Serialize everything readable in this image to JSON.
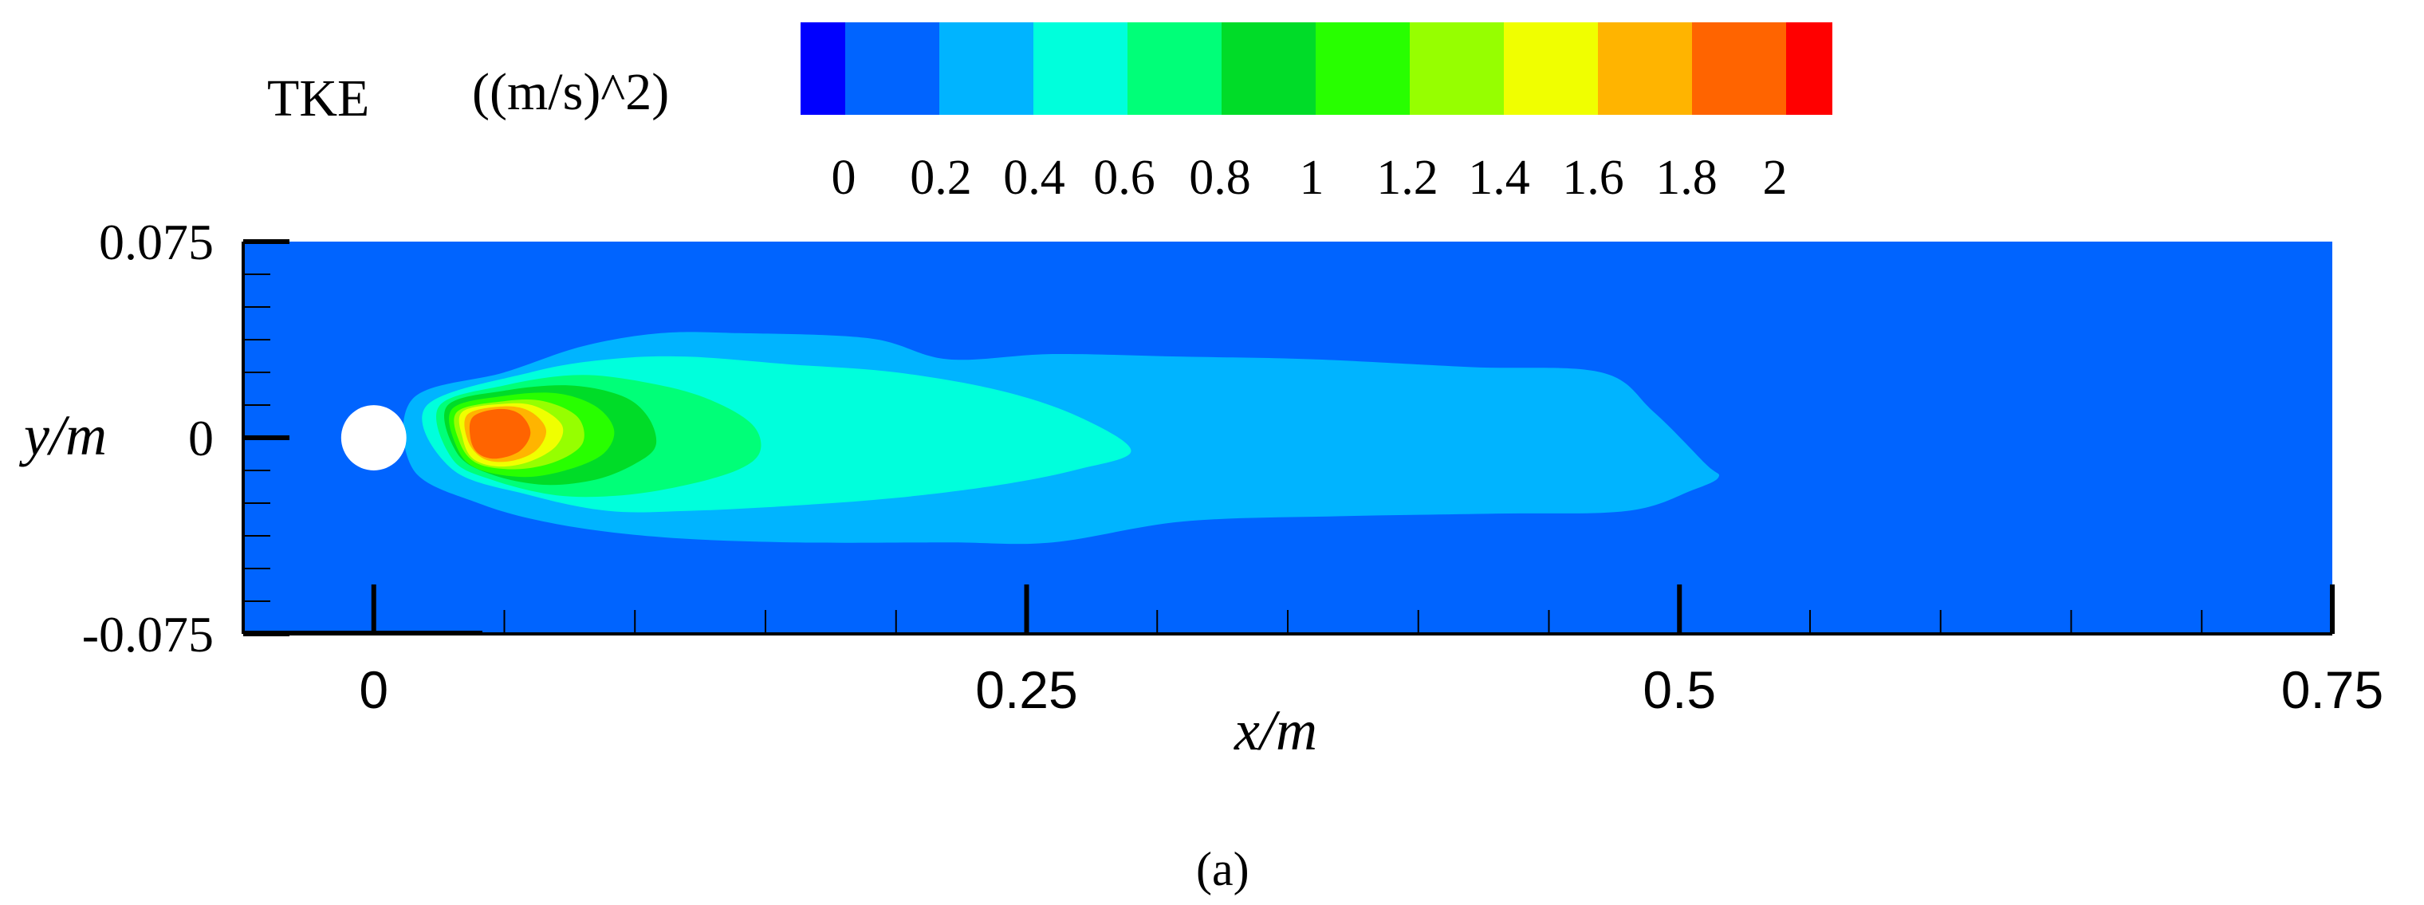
{
  "figure": {
    "panel_label": "(a)"
  },
  "legend": {
    "variable": "TKE",
    "unit": "((m/s)^2)",
    "levels": [
      {
        "value": "0",
        "color": "#0000ff"
      },
      {
        "value": "0.2",
        "color": "#0064ff"
      },
      {
        "value": "0.4",
        "color": "#00b4ff"
      },
      {
        "value": "0.6",
        "color": "#00ffdc"
      },
      {
        "value": "0.8",
        "color": "#00ff78"
      },
      {
        "value": "1",
        "color": "#00dc28"
      },
      {
        "value": "1.2",
        "color": "#28ff00"
      },
      {
        "value": "1.4",
        "color": "#96ff00"
      },
      {
        "value": "1.6",
        "color": "#f0ff00"
      },
      {
        "value": "1.8",
        "color": "#ffb400"
      },
      {
        "value": "2",
        "color": "#ff6400"
      }
    ],
    "top_color": "#ff0000",
    "ticks": [
      "0",
      "0.2",
      "0.4",
      "0.6",
      "0.8",
      "1",
      "1.2",
      "1.4",
      "1.6",
      "1.8",
      "2"
    ]
  },
  "chart_data": {
    "type": "heatmap",
    "title": "",
    "xlabel": "x/m",
    "ylabel": "y/m",
    "xlim": [
      -0.05,
      0.75
    ],
    "ylim": [
      -0.075,
      0.075
    ],
    "x_ticks": [
      0,
      0.25,
      0.5,
      0.75
    ],
    "x_tick_labels": [
      "0",
      "0.25",
      "0.5",
      "0.75"
    ],
    "y_ticks": [
      -0.075,
      0,
      0.075
    ],
    "y_tick_labels": [
      "-0.075",
      "0",
      "0.075"
    ],
    "colorbar_label": "TKE ((m/s)^2)",
    "colorbar_ticks": [
      0,
      0.2,
      0.4,
      0.6,
      0.8,
      1,
      1.2,
      1.4,
      1.6,
      1.8,
      2
    ],
    "background_level": 0.2,
    "cylinder": {
      "x": 0,
      "y": 0,
      "diameter": 0.025
    },
    "contours": [
      {
        "level": 0.4,
        "x": [
          0.015,
          0.05,
          0.08,
          0.11,
          0.14,
          0.19,
          0.22,
          0.26,
          0.31,
          0.36,
          0.42,
          0.47,
          0.49,
          0.51,
          0.515,
          0.505,
          0.48,
          0.43,
          0.37,
          0.31,
          0.26,
          0.22,
          0.16,
          0.11,
          0.07,
          0.04,
          0.015
        ],
        "y": [
          0.015,
          0.025,
          0.035,
          0.04,
          0.04,
          0.038,
          0.03,
          0.032,
          0.031,
          0.03,
          0.027,
          0.025,
          0.01,
          -0.01,
          -0.015,
          -0.02,
          -0.028,
          -0.029,
          -0.03,
          -0.032,
          -0.04,
          -0.04,
          -0.04,
          -0.038,
          -0.033,
          -0.025,
          -0.012
        ]
      },
      {
        "level": 0.6,
        "x": [
          0.02,
          0.06,
          0.09,
          0.12,
          0.16,
          0.2,
          0.24,
          0.27,
          0.29,
          0.27,
          0.24,
          0.2,
          0.16,
          0.12,
          0.09,
          0.06,
          0.03
        ],
        "y": [
          0.012,
          0.025,
          0.03,
          0.031,
          0.028,
          0.025,
          0.018,
          0.008,
          -0.005,
          -0.012,
          -0.018,
          -0.023,
          -0.026,
          -0.028,
          -0.028,
          -0.022,
          -0.012
        ]
      },
      {
        "level": 0.8,
        "x": [
          0.025,
          0.05,
          0.08,
          0.11,
          0.13,
          0.145,
          0.148,
          0.14,
          0.12,
          0.095,
          0.07,
          0.045,
          0.03
        ],
        "y": [
          0.012,
          0.02,
          0.024,
          0.02,
          0.014,
          0.005,
          -0.005,
          -0.012,
          -0.018,
          -0.022,
          -0.022,
          -0.016,
          -0.008
        ]
      },
      {
        "level": 1.0,
        "x": [
          0.028,
          0.05,
          0.075,
          0.095,
          0.105,
          0.108,
          0.1,
          0.085,
          0.065,
          0.045,
          0.032
        ],
        "y": [
          0.012,
          0.018,
          0.02,
          0.016,
          0.008,
          -0.003,
          -0.01,
          -0.016,
          -0.018,
          -0.014,
          -0.006
        ]
      },
      {
        "level": 1.2,
        "x": [
          0.03,
          0.05,
          0.07,
          0.085,
          0.092,
          0.088,
          0.075,
          0.058,
          0.04,
          0.032
        ],
        "y": [
          0.011,
          0.016,
          0.017,
          0.012,
          0.003,
          -0.006,
          -0.012,
          -0.015,
          -0.012,
          -0.004
        ]
      },
      {
        "level": 1.4,
        "x": [
          0.032,
          0.05,
          0.065,
          0.078,
          0.08,
          0.07,
          0.055,
          0.04,
          0.033
        ],
        "y": [
          0.01,
          0.014,
          0.014,
          0.008,
          -0.002,
          -0.009,
          -0.012,
          -0.01,
          -0.002
        ]
      },
      {
        "level": 1.6,
        "x": [
          0.034,
          0.05,
          0.062,
          0.072,
          0.07,
          0.06,
          0.048,
          0.038,
          0.034
        ],
        "y": [
          0.01,
          0.013,
          0.012,
          0.005,
          -0.003,
          -0.009,
          -0.011,
          -0.008,
          0.0
        ]
      },
      {
        "level": 1.8,
        "x": [
          0.036,
          0.05,
          0.06,
          0.066,
          0.062,
          0.052,
          0.042,
          0.036
        ],
        "y": [
          0.009,
          0.012,
          0.01,
          0.003,
          -0.005,
          -0.009,
          -0.008,
          -0.001
        ]
      },
      {
        "level": 2.0,
        "x": [
          0.038,
          0.048,
          0.056,
          0.06,
          0.056,
          0.047,
          0.04,
          0.037
        ],
        "y": [
          0.008,
          0.011,
          0.009,
          0.002,
          -0.005,
          -0.008,
          -0.006,
          0.0
        ]
      }
    ]
  }
}
